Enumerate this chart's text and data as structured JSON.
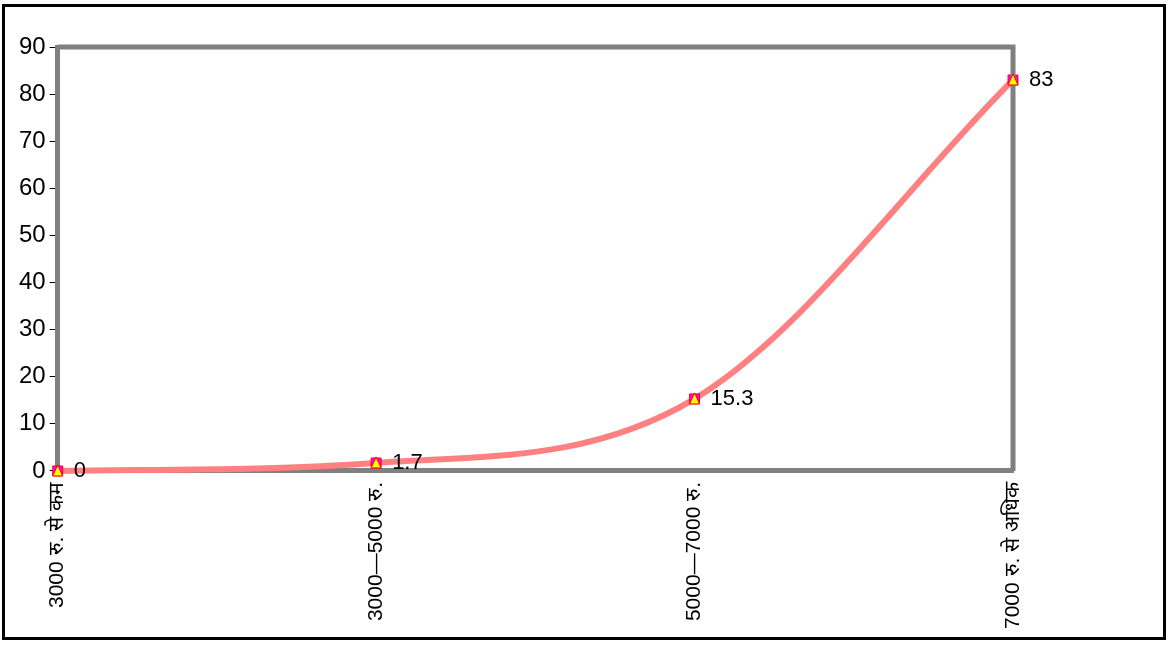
{
  "chart_data": {
    "type": "line",
    "categories": [
      "3000 रु. से कम",
      "3000—5000 रु.",
      "5000—7000 रु.",
      "7000 रु. से अधिक"
    ],
    "series": [
      {
        "color": "#ff8080",
        "values": [
          0,
          1.7,
          15.3,
          83
        ]
      }
    ],
    "ylim": [
      0,
      90
    ],
    "yticks": [
      0,
      10,
      20,
      30,
      40,
      50,
      60,
      70,
      80,
      90
    ],
    "grid": false,
    "legend": false,
    "marker": "square",
    "data_labels": true
  }
}
